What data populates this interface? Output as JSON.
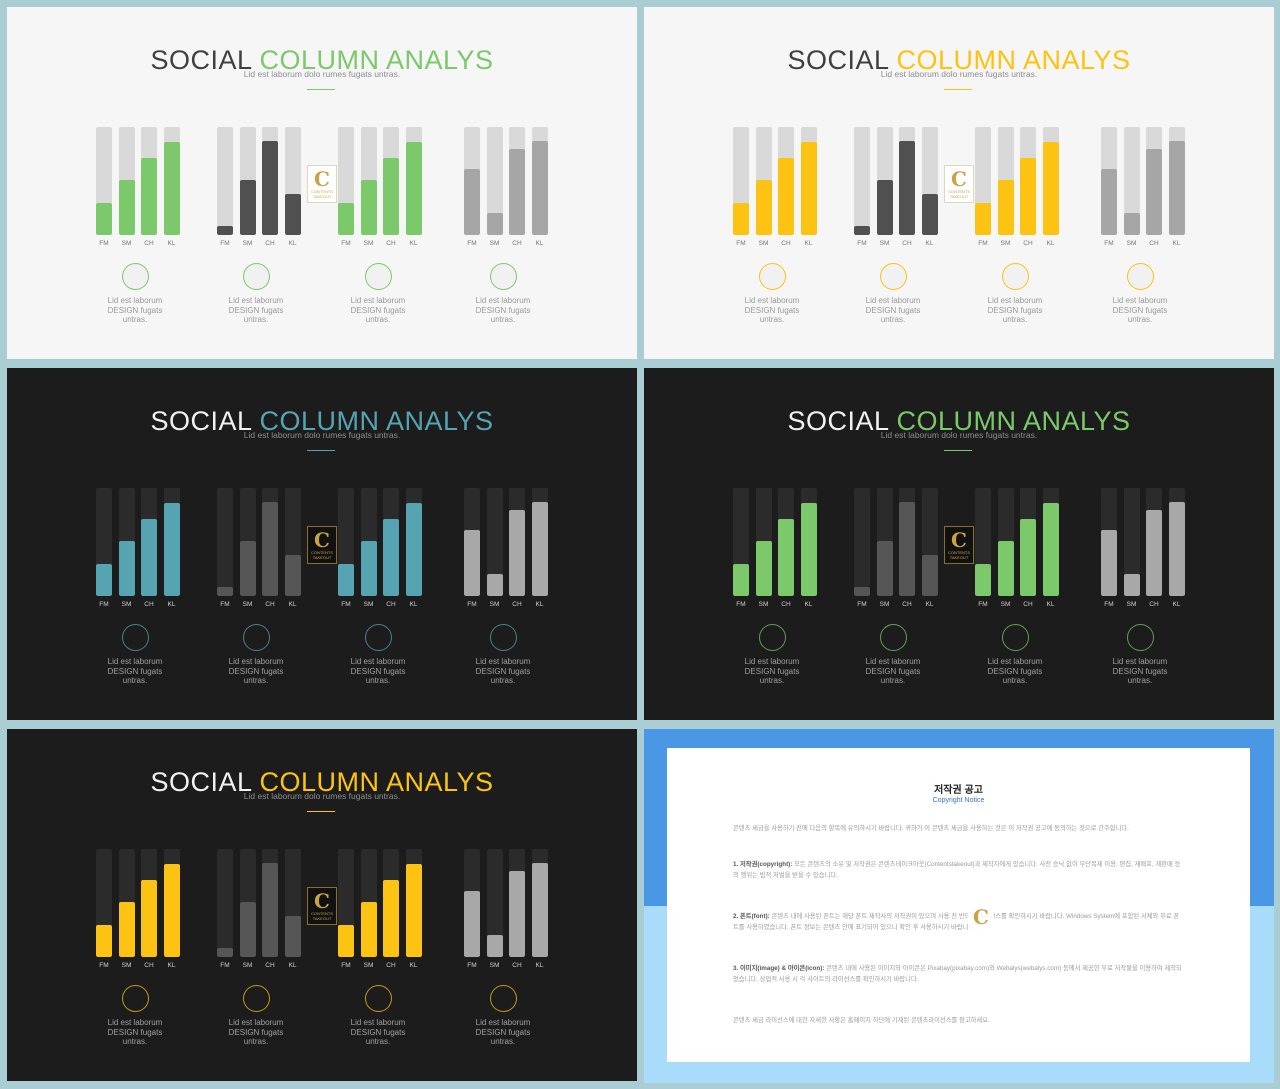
{
  "slides": [
    {
      "theme": "light",
      "accent": "#7bc96b",
      "title_a": "SOCIAL",
      "title_b": "COLUMN ANALYS",
      "subtitle": "Lid est laborum dolo rumes fugats untras."
    },
    {
      "theme": "light",
      "accent": "#fcc312",
      "title_a": "SOCIAL",
      "title_b": "COLUMN ANALYS",
      "subtitle": "Lid est laborum dolo rumes fugats untras."
    },
    {
      "theme": "dark",
      "accent": "#56a3b2",
      "title_a": "SOCIAL",
      "title_b": "COLUMN ANALYS",
      "subtitle": "Lid est laborum dolo rumes fugats untras."
    },
    {
      "theme": "dark",
      "accent": "#7bc96b",
      "title_a": "SOCIAL",
      "title_b": "COLUMN ANALYS",
      "subtitle": "Lid est laborum dolo rumes fugats untras."
    },
    {
      "theme": "dark",
      "accent": "#fcc312",
      "title_a": "SOCIAL",
      "title_b": "COLUMN ANALYS",
      "subtitle": "Lid est laborum dolo rumes fugats untras."
    }
  ],
  "chart_data": {
    "type": "bar",
    "categories": [
      "FM",
      "SM",
      "CH",
      "KL"
    ],
    "ylim": [
      0,
      100
    ],
    "groups": [
      {
        "style": "accent",
        "values": [
          30,
          51,
          71,
          86
        ]
      },
      {
        "style": "darkgray",
        "values": [
          8,
          51,
          87,
          38
        ]
      },
      {
        "style": "accent",
        "values": [
          30,
          51,
          71,
          86
        ]
      },
      {
        "style": "lightgray",
        "values": [
          61,
          20,
          80,
          87
        ]
      }
    ]
  },
  "captions": [
    {
      "line1": "Lid est laborum",
      "line2": "DESIGN fugats",
      "line3": "untras."
    },
    {
      "line1": "Lid est laborum",
      "line2": "DESIGN fugats",
      "line3": "untras."
    },
    {
      "line1": "Lid est laborum",
      "line2": "DESIGN fugats",
      "line3": "untras."
    },
    {
      "line1": "Lid est laborum",
      "line2": "DESIGN fugats",
      "line3": "untras."
    }
  ],
  "logo": {
    "letter": "C",
    "text1": "CONTENTS",
    "text2": "TAKEOUT"
  },
  "colors": {
    "light_track": "#d9d9d9",
    "dark_track": "#2b2b2b",
    "light_darkgray": "#505050",
    "dark_darkgray": "#565656",
    "light_lightgray": "#a6a6a6",
    "dark_lightgray": "#a8a8a8"
  },
  "copyright": {
    "title": "저작권 공고",
    "subtitle": "Copyright Notice",
    "p0": "콘텐츠 세금을 사용하기 전에 다음의 항목에 유의하시기 바랍니다. 귀하가 이 콘텐츠 세금을 사용하는 것은 이 저작권 공고에 동의하는 것으로 간주합니다.",
    "p1_label": "1. 저작권(copyright):",
    "p1": "모든 콘텐츠의 소유 및 저작권은 콘텐츠테이크아웃(Contentstakeout)과 제작자에게 있습니다. 사전 승낙 없이 무단복제 이용, 편집, 재배포, 재판매 등의 행위는 법적 처벌을 받을 수 있습니다.",
    "p2_label": "2. 폰트(font):",
    "p2": "콘텐츠 내에 사용된 폰트는 해당 폰트 제작사의 저작권이 있으며 사용 전 반드시 라이선스를 확인하시기 바랍니다. Windows System에 포함된 서체와 무료 폰트를 사용하였습니다. 폰트 정보는 콘텐츠 안에 표기되어 있으니 확인 후 사용하시기 바랍니다.",
    "p3_label": "3. 이미지(image) & 아이콘(icon):",
    "p3": "콘텐츠 내에 사용된 이미지와 아이콘은 Pixabay(pixabay.com)와 Webalys(webalys.com) 등에서 제공한 무료 저작물을 이용하여 제작되었습니다. 상업적 사용 시 각 사이트의 라이선스를 확인하시기 바랍니다.",
    "p4": "콘텐츠 세금 라이선스에 대한 자세한 사항은 홈페이지 하단에 기재된 콘텐츠라이선스를 참고하세요."
  }
}
